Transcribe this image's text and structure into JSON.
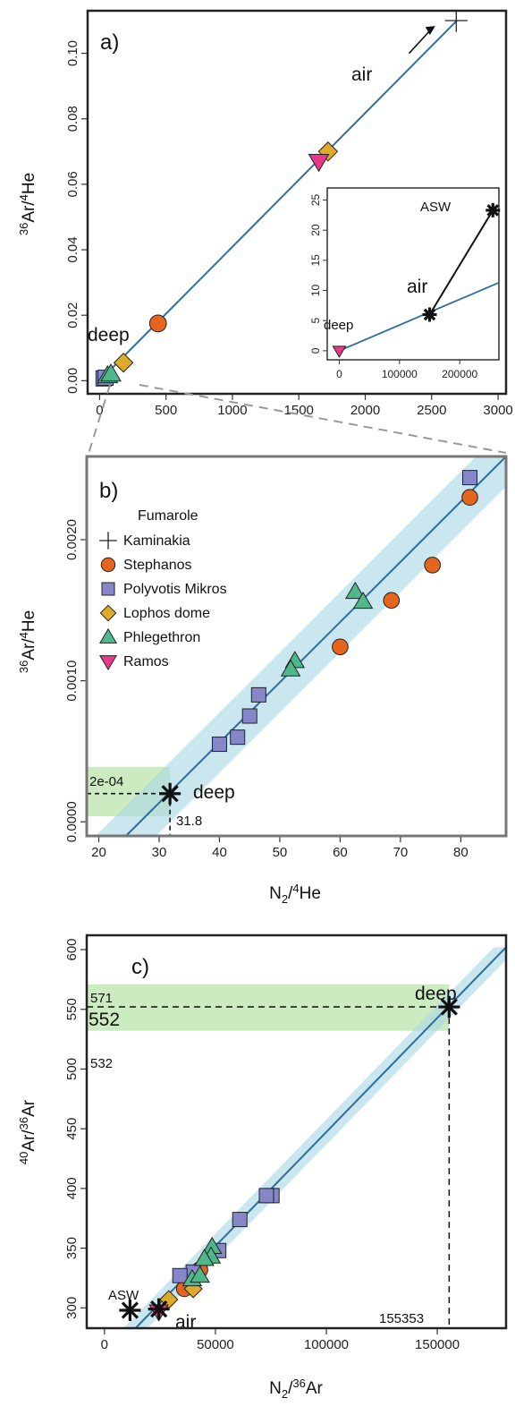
{
  "colors": {
    "trend": "#2e6e9e",
    "band": "#add8e6",
    "green_band": "#cdebc0",
    "frame": "#222222",
    "frame_b": "#777777",
    "stephanos": "#e5641e",
    "polyvotis": "#8686c8",
    "lophos": "#ddaa2a",
    "phlegethron": "#4fb88a",
    "ramos": "#e8388a"
  },
  "chart_data": [
    {
      "panel": "a)",
      "type": "scatter",
      "xlabel": "",
      "ylabel_html": [
        "36",
        "Ar/",
        "4",
        "He"
      ],
      "xlim": [
        -90,
        3060
      ],
      "ylim": [
        -0.004,
        0.113
      ],
      "xticks": [
        0,
        500,
        1000,
        1500,
        2000,
        2500,
        3000
      ],
      "yticks": [
        0.0,
        0.02,
        0.04,
        0.06,
        0.08,
        0.1
      ],
      "ytick_labels": [
        "0.00",
        "0.02",
        "0.04",
        "0.06",
        "0.08",
        "0.10"
      ],
      "trend_line": [
        [
          0,
          0
        ],
        [
          2690,
          0.11
        ]
      ],
      "series": [
        {
          "name": "Kaminakia",
          "marker": "plus",
          "points": [
            [
              2685,
              0.11
            ]
          ]
        },
        {
          "name": "Stephanos",
          "marker": "circle",
          "points": [
            [
              440,
              0.0175
            ]
          ]
        },
        {
          "name": "Polyvotis Mikros",
          "marker": "square",
          "points": [
            [
              30,
              0.0007
            ],
            [
              45,
              0.0009
            ]
          ]
        },
        {
          "name": "Lophos dome",
          "marker": "diamond",
          "points": [
            [
              1720,
              0.07
            ],
            [
              180,
              0.0055
            ]
          ]
        },
        {
          "name": "Phlegethron",
          "marker": "triangle",
          "points": [
            [
              60,
              0.0015
            ],
            [
              85,
              0.002
            ]
          ]
        },
        {
          "name": "Ramos",
          "marker": "down-triangle",
          "points": [
            [
              1650,
              0.067
            ]
          ]
        }
      ],
      "annotations": {
        "air": "air",
        "deep": "deep"
      },
      "inset": {
        "xlim": [
          -20000,
          265000
        ],
        "ylim": [
          -1.5,
          27
        ],
        "xticks": [
          0,
          100000,
          200000
        ],
        "yticks": [
          0,
          5,
          10,
          15,
          20,
          25
        ],
        "trend_line": [
          [
            0,
            0
          ],
          [
            265000,
            11.3
          ]
        ],
        "air": [
          150000,
          6.0
        ],
        "asw": [
          255000,
          23.3
        ],
        "deep": [
          0,
          0
        ],
        "labels": {
          "asw": "ASW",
          "air": "air",
          "deep": "deep"
        }
      }
    },
    {
      "panel": "b)",
      "type": "scatter",
      "xlabel_html": [
        "N",
        "2",
        "/",
        "4",
        "He"
      ],
      "ylabel_html": [
        "36",
        "Ar/",
        "4",
        "He"
      ],
      "xlim": [
        18,
        87.5
      ],
      "ylim": [
        -0.0001,
        0.00259
      ],
      "xticks": [
        20,
        30,
        40,
        50,
        60,
        70,
        80
      ],
      "yticks": [
        0.0,
        0.001,
        0.002
      ],
      "ytick_labels": [
        "0.0000",
        "0.0010",
        "0.0020"
      ],
      "trend_line": [
        [
          24.5,
          -0.0001
        ],
        [
          87.5,
          0.00259
        ]
      ],
      "band_halfwidth_x": 5,
      "legend_title": "Fumarole",
      "legend": [
        {
          "name": "Kaminakia",
          "marker": "plus"
        },
        {
          "name": "Stephanos",
          "marker": "circle"
        },
        {
          "name": "Polyvotis Mikros",
          "marker": "square"
        },
        {
          "name": "Lophos dome",
          "marker": "diamond"
        },
        {
          "name": "Phlegethron",
          "marker": "triangle"
        },
        {
          "name": "Ramos",
          "marker": "down-triangle"
        }
      ],
      "series": [
        {
          "name": "Stephanos",
          "marker": "circle",
          "points": [
            [
              81.5,
              0.0023
            ],
            [
              75.3,
              0.00182
            ],
            [
              68.5,
              0.00157
            ],
            [
              60.0,
              0.00124
            ]
          ]
        },
        {
          "name": "Polyvotis Mikros",
          "marker": "square",
          "points": [
            [
              81.5,
              0.00244
            ],
            [
              46.5,
              0.0009
            ],
            [
              45.0,
              0.00075
            ],
            [
              43.0,
              0.0006
            ],
            [
              40.0,
              0.00055
            ]
          ]
        },
        {
          "name": "Phlegethron",
          "marker": "triangle",
          "points": [
            [
              62.5,
              0.00163
            ],
            [
              63.8,
              0.00156
            ],
            [
              52.5,
              0.00114
            ],
            [
              51.8,
              0.00108
            ]
          ]
        }
      ],
      "deep": [
        31.8,
        0.0002
      ],
      "green_band_y": [
        4e-05,
        0.00039
      ],
      "annotations": {
        "deep": "deep",
        "deep_y": "2e-04",
        "deep_x": "31.8"
      }
    },
    {
      "panel": "c)",
      "type": "scatter",
      "xlabel_html": [
        "N",
        "2",
        "/",
        "36",
        "Ar"
      ],
      "ylabel_html": [
        "40",
        "Ar/",
        "36",
        "Ar"
      ],
      "xlim": [
        -8000,
        181000
      ],
      "ylim": [
        283,
        612
      ],
      "xticks": [
        0,
        50000,
        100000,
        150000
      ],
      "yticks": [
        300,
        350,
        400,
        450,
        500,
        550,
        600
      ],
      "trend_line": [
        [
          14000,
          283
        ],
        [
          181000,
          602
        ]
      ],
      "band_halfwidth_x": 5500,
      "series": [
        {
          "name": "Stephanos",
          "marker": "circle",
          "points": [
            [
              43000,
              332
            ],
            [
              36000,
              316
            ]
          ]
        },
        {
          "name": "Polyvotis Mikros",
          "marker": "square",
          "points": [
            [
              75500,
              394
            ],
            [
              73000,
              394
            ],
            [
              61000,
              374
            ],
            [
              51500,
              348
            ],
            [
              40000,
              330
            ],
            [
              34000,
              327
            ]
          ]
        },
        {
          "name": "Lophos dome",
          "marker": "diamond",
          "points": [
            [
              40000,
              316
            ],
            [
              29000,
              307
            ]
          ]
        },
        {
          "name": "Phlegethron",
          "marker": "triangle",
          "points": [
            [
              48500,
              351
            ],
            [
              48000,
              343
            ],
            [
              45000,
              341
            ],
            [
              39500,
              324
            ],
            [
              43000,
              327
            ]
          ]
        },
        {
          "name": "Ramos",
          "marker": "down-triangle",
          "points": [
            [
              24500,
              297
            ]
          ]
        }
      ],
      "stars": [
        [
          155353,
          552
        ],
        [
          11500,
          298
        ],
        [
          24500,
          299
        ]
      ],
      "green_band_y": [
        532,
        571
      ],
      "annotations": {
        "deep": "deep",
        "asw": "ASW",
        "air": "air",
        "y_upper": "571",
        "y_mid": "552",
        "y_lower": "532",
        "x_deep": "155353"
      }
    }
  ]
}
